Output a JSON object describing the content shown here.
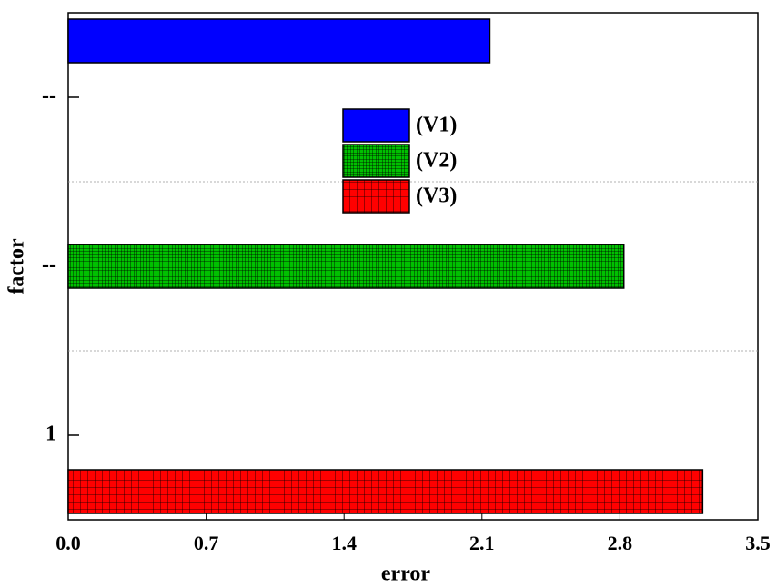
{
  "chart_data": {
    "type": "grouped-hbar",
    "x_label": "error",
    "y_label": "factor",
    "categories": [
      "--",
      "--",
      "1"
    ],
    "series": [
      {
        "name": "(V1)",
        "color": "#0000ff",
        "pattern": "solid",
        "values": [
          2.14,
          null,
          null
        ]
      },
      {
        "name": "(V2)",
        "color": "#00c000",
        "pattern": "fine-grid",
        "values": [
          null,
          2.82,
          null
        ]
      },
      {
        "name": "(V3)",
        "color": "#ff0000",
        "pattern": "grid",
        "values": [
          null,
          null,
          3.22
        ]
      }
    ],
    "xlim": [
      0,
      3.5
    ],
    "xticks": [
      {
        "value": 0,
        "label": "0.0"
      },
      0.7,
      1.4,
      2.1,
      2.8,
      3.5
    ],
    "grid": true
  }
}
